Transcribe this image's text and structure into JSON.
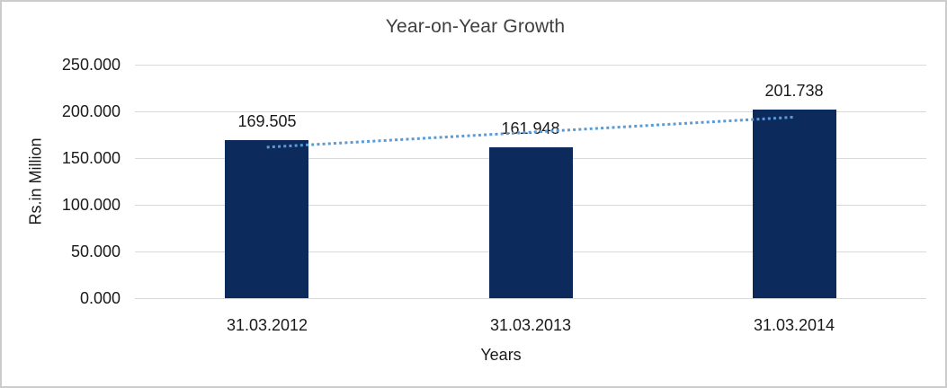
{
  "chart_data": {
    "type": "bar",
    "title": "Year-on-Year Growth",
    "xlabel": "Years",
    "ylabel": "Rs.in Million",
    "categories": [
      "31.03.2012",
      "31.03.2013",
      "31.03.2014"
    ],
    "values": [
      169.505,
      161.948,
      201.738
    ],
    "value_labels": [
      "169.505",
      "161.948",
      "201.738"
    ],
    "ylim": [
      0,
      250
    ],
    "ytick_values": [
      0,
      50,
      100,
      150,
      200,
      250
    ],
    "ytick_labels": [
      "0.000",
      "50.000",
      "100.000",
      "150.000",
      "200.000",
      "250.000"
    ],
    "grid": true,
    "legend": false,
    "colors": {
      "bar": "#0d2a5c",
      "trendline": "#5b9bd5",
      "gridline": "#d9d9d9",
      "border": "#cccccc",
      "text": "#1a1a1a",
      "title_text": "#3f3f3f"
    },
    "trendline": {
      "type": "linear",
      "style": "dotted",
      "values": [
        161.6,
        177.73,
        193.85
      ]
    }
  }
}
